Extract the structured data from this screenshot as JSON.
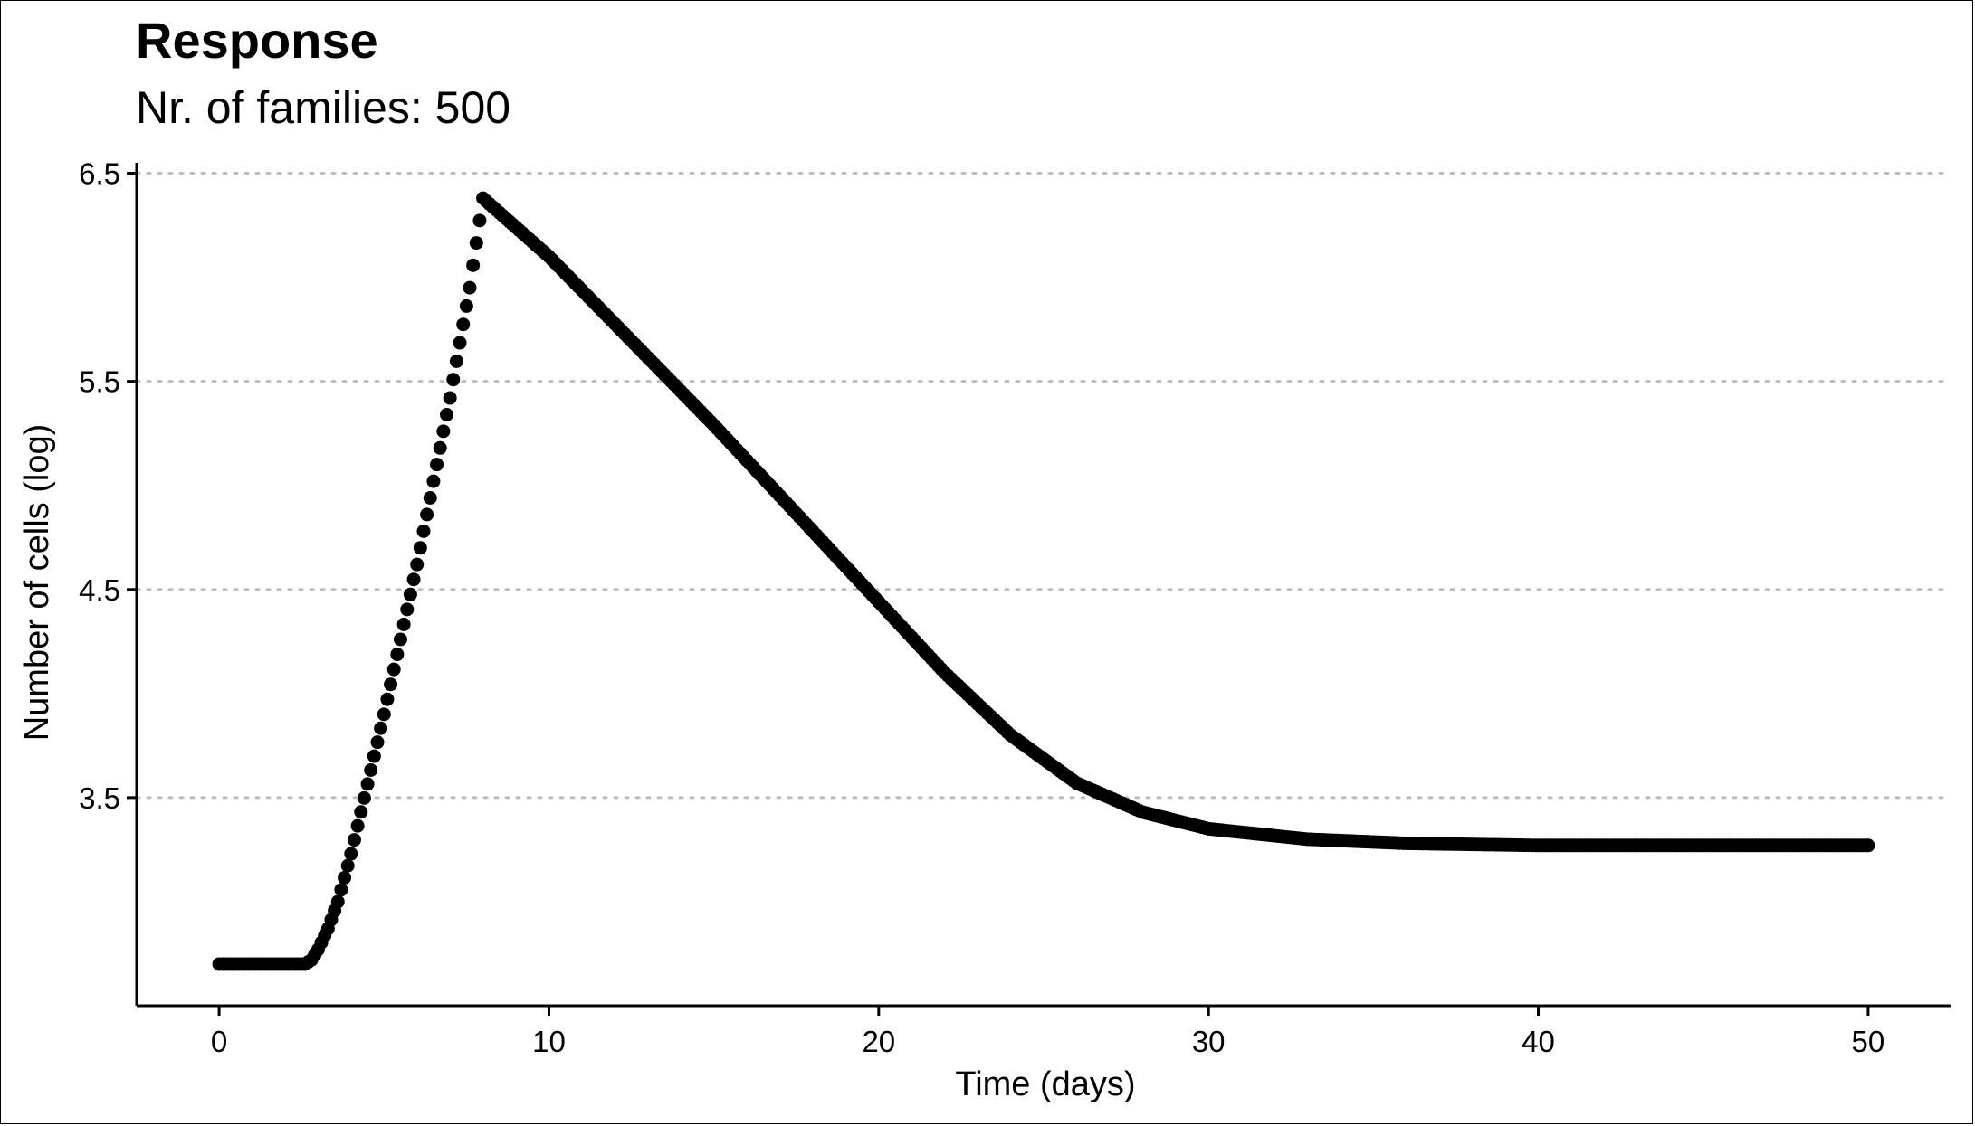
{
  "chart_data": {
    "type": "scatter",
    "title": "Response",
    "subtitle": "Nr. of families: 500",
    "xlabel": "Time (days)",
    "ylabel": "Number of cells (log)",
    "xlim": [
      -2.5,
      52.5
    ],
    "ylim": [
      2.5,
      6.55
    ],
    "x_ticks": [
      0,
      10,
      20,
      30,
      40,
      50
    ],
    "y_ticks": [
      3.5,
      4.5,
      5.5,
      6.5
    ],
    "grid": "horizontal-dotted",
    "point_color": "#000000",
    "grid_color": "#bdbdbd",
    "series": [
      {
        "curve_description_points": [
          [
            0,
            2.7
          ],
          [
            2.6,
            2.7
          ],
          [
            2.8,
            2.72
          ],
          [
            3.0,
            2.77
          ],
          [
            3.3,
            2.87
          ],
          [
            3.6,
            3.0
          ],
          [
            4.0,
            3.23
          ],
          [
            5.0,
            3.9
          ],
          [
            6.0,
            4.62
          ],
          [
            7.0,
            5.42
          ],
          [
            7.6,
            5.95
          ],
          [
            8.0,
            6.38
          ],
          [
            10,
            6.1
          ],
          [
            15,
            5.29
          ],
          [
            20,
            4.44
          ],
          [
            22,
            4.1
          ],
          [
            24,
            3.8
          ],
          [
            26,
            3.57
          ],
          [
            28,
            3.43
          ],
          [
            30,
            3.35
          ],
          [
            33,
            3.3
          ],
          [
            36,
            3.28
          ],
          [
            40,
            3.27
          ],
          [
            45,
            3.27
          ],
          [
            50,
            3.27
          ]
        ]
      }
    ]
  }
}
